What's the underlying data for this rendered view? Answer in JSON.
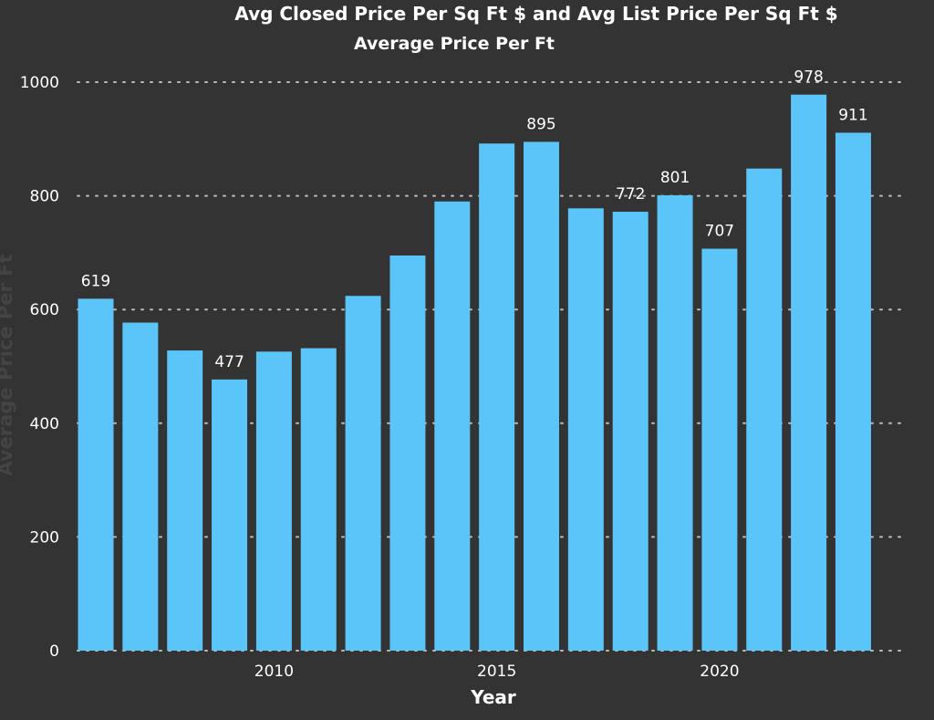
{
  "chart_data": {
    "type": "bar",
    "title": "Avg Closed Price Per Sq Ft $ and Avg List Price Per Sq Ft $",
    "subtitle": "Average Price Per Ft",
    "xlabel": "Year",
    "ylabel": "Average Price Per Ft",
    "categories": [
      2006,
      2007,
      2008,
      2009,
      2010,
      2011,
      2012,
      2013,
      2014,
      2015,
      2016,
      2017,
      2018,
      2019,
      2020,
      2021,
      2022,
      2023
    ],
    "values": [
      619,
      577,
      528,
      477,
      526,
      532,
      624,
      695,
      790,
      892,
      895,
      778,
      772,
      801,
      707,
      848,
      978,
      911
    ],
    "data_labels": [
      "619",
      "",
      "",
      "477",
      "",
      "",
      "",
      "",
      "",
      "",
      "895",
      "",
      "772",
      "801",
      "707",
      "",
      "978",
      "911"
    ],
    "xticks": [
      2010,
      2015,
      2020
    ],
    "yticks": [
      0,
      200,
      400,
      600,
      800,
      1000
    ],
    "ylim": [
      0,
      1000
    ],
    "grid": true,
    "colors": {
      "background": "#333333",
      "bar": "#5bc5fa",
      "grid": "#bbbbbb",
      "text": "#ffffff"
    }
  }
}
